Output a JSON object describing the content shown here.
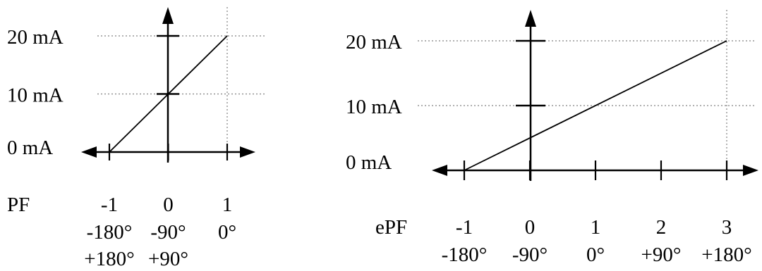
{
  "chart_data": [
    {
      "type": "line",
      "title": "",
      "xlabel": "PF",
      "ylabel": "",
      "x_ticks": [
        {
          "value": -1,
          "label": "-1",
          "angles": [
            "-180°",
            "+180°"
          ]
        },
        {
          "value": 0,
          "label": "0",
          "angles": [
            "-90°",
            "+90°"
          ]
        },
        {
          "value": 1,
          "label": "1",
          "angles": [
            "0°"
          ]
        }
      ],
      "y_ticks": [
        {
          "value": 0,
          "label": "0 mA"
        },
        {
          "value": 10,
          "label": "10 mA"
        },
        {
          "value": 20,
          "label": "20 mA"
        }
      ],
      "xlim": [
        -1,
        1
      ],
      "ylim": [
        0,
        20
      ],
      "series": [
        {
          "x": [
            -1,
            1
          ],
          "y": [
            0,
            20
          ]
        }
      ],
      "grid": "dotted guide lines at 10 mA, 20 mA and x = 1",
      "colors": {
        "line": "#000000",
        "guide": "#808080"
      }
    },
    {
      "type": "line",
      "title": "",
      "xlabel": "ePF",
      "ylabel": "",
      "x_ticks": [
        {
          "value": -1,
          "label": "-1",
          "angles": [
            "-180°"
          ]
        },
        {
          "value": 0,
          "label": "0",
          "angles": [
            "-90°"
          ]
        },
        {
          "value": 1,
          "label": "1",
          "angles": [
            "0°"
          ]
        },
        {
          "value": 2,
          "label": "2",
          "angles": [
            "+90°"
          ]
        },
        {
          "value": 3,
          "label": "3",
          "angles": [
            "+180°"
          ]
        }
      ],
      "y_ticks": [
        {
          "value": 0,
          "label": "0 mA"
        },
        {
          "value": 10,
          "label": "10 mA"
        },
        {
          "value": 20,
          "label": "20 mA"
        }
      ],
      "xlim": [
        -1,
        3
      ],
      "ylim": [
        0,
        20
      ],
      "series": [
        {
          "x": [
            -1,
            3
          ],
          "y": [
            0,
            20
          ]
        }
      ],
      "grid": "dotted guide lines at 10 mA, 20 mA and x = 3",
      "colors": {
        "line": "#000000",
        "guide": "#808080"
      }
    }
  ]
}
